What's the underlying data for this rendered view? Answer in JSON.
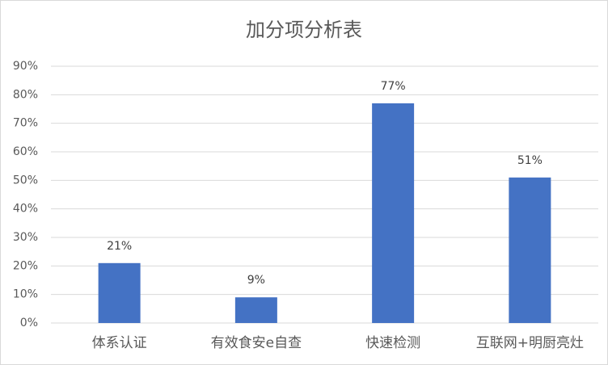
{
  "chart_data": {
    "type": "bar",
    "title": "加分项分析表",
    "categories": [
      "体系认证",
      "有效食安e自查",
      "快速检测",
      "互联网+明厨亮灶"
    ],
    "values": [
      21,
      9,
      77,
      51
    ],
    "value_labels": [
      "21%",
      "9%",
      "77%",
      "51%"
    ],
    "color": "#4472c4",
    "ylim": [
      0,
      90
    ],
    "yticks": [
      {
        "value": 0,
        "label": "0%"
      },
      {
        "value": 10,
        "label": "10%"
      },
      {
        "value": 20,
        "label": "20%"
      },
      {
        "value": 30,
        "label": "30%"
      },
      {
        "value": 40,
        "label": "40%"
      },
      {
        "value": 50,
        "label": "50%"
      },
      {
        "value": 60,
        "label": "60%"
      },
      {
        "value": 70,
        "label": "70%"
      },
      {
        "value": 80,
        "label": "80%"
      },
      {
        "value": 90,
        "label": "90%"
      }
    ],
    "grid": true
  }
}
